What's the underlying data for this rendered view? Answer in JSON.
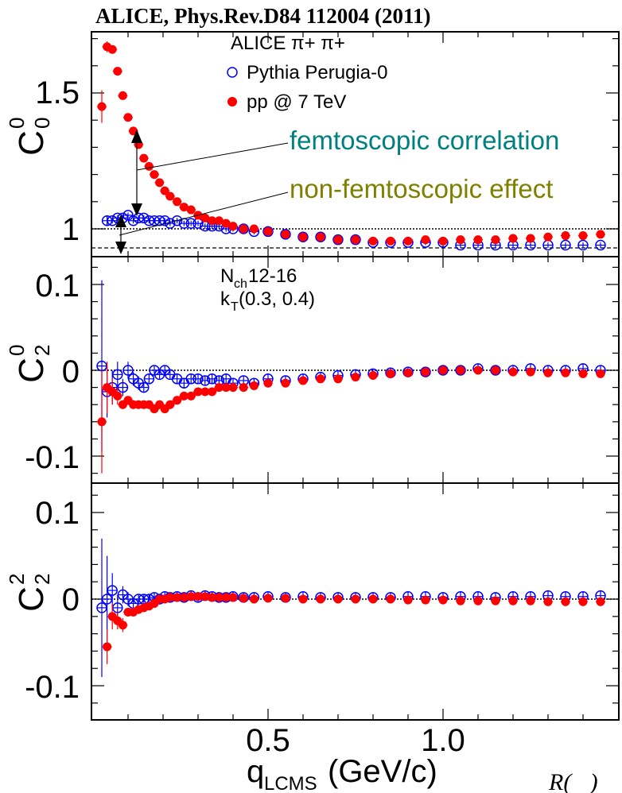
{
  "title": "ALICE, Phys.Rev.D84 112004 (2011)",
  "corner_text": "R(⃗)",
  "colors": {
    "red": "#ff0000",
    "blue": "#0000ff",
    "teal": "#008080",
    "olive": "#808000"
  },
  "legend": {
    "header": "ALICE  π+ π+",
    "entries": [
      "Pythia Perugia-0",
      "pp @ 7 TeV"
    ]
  },
  "annotations": {
    "femto": "femtoscopic correlation",
    "nonfemto": "non-femtoscopic effect",
    "nch_main": "N",
    "nch_sub": "ch",
    "nch_range": " 12-16",
    "kt_main": "k",
    "kt_sub": "T",
    "kt_range": " (0.3, 0.4)"
  },
  "x_axis": {
    "label_main": "q",
    "label_sub": "LCMS",
    "label_unit": " (GeV/c)",
    "ticks": [
      "0.5",
      "1.0"
    ]
  },
  "panels": [
    {
      "ylabel_main": "C",
      "ylabel_sup": "0",
      "ylabel_sub": "0",
      "ticks": [
        "1.5",
        "1"
      ]
    },
    {
      "ylabel_main": "C",
      "ylabel_sup": "0",
      "ylabel_sub": "2",
      "ticks": [
        "0.1",
        "0",
        "-0.1"
      ]
    },
    {
      "ylabel_main": "C",
      "ylabel_sup": "2",
      "ylabel_sub": "2",
      "ticks": [
        "0.1",
        "0",
        "-0.1"
      ]
    }
  ],
  "chart_data": [
    {
      "type": "scatter",
      "panel": "C00",
      "xlim": [
        0.02,
        1.5
      ],
      "ylim": [
        0.88,
        1.75
      ],
      "yticks": [
        1.0,
        1.5
      ],
      "series": [
        {
          "name": "pp @ 7 TeV",
          "x": [
            0.025,
            0.04,
            0.055,
            0.07,
            0.085,
            0.1,
            0.115,
            0.13,
            0.145,
            0.16,
            0.175,
            0.19,
            0.205,
            0.22,
            0.24,
            0.26,
            0.28,
            0.3,
            0.32,
            0.34,
            0.36,
            0.38,
            0.4,
            0.43,
            0.46,
            0.5,
            0.55,
            0.6,
            0.65,
            0.7,
            0.75,
            0.8,
            0.85,
            0.9,
            0.95,
            1.0,
            1.05,
            1.1,
            1.15,
            1.2,
            1.25,
            1.3,
            1.35,
            1.4,
            1.45,
            1.5
          ],
          "y": [
            1.45,
            1.67,
            1.66,
            1.58,
            1.49,
            1.41,
            1.36,
            1.31,
            1.26,
            1.23,
            1.2,
            1.17,
            1.14,
            1.12,
            1.1,
            1.08,
            1.07,
            1.05,
            1.04,
            1.03,
            1.03,
            1.02,
            1.01,
            1.0,
            1.0,
            0.99,
            0.98,
            0.97,
            0.97,
            0.96,
            0.96,
            0.955,
            0.955,
            0.955,
            0.96,
            0.955,
            0.96,
            0.96,
            0.96,
            0.965,
            0.965,
            0.97,
            0.975,
            0.975,
            0.98,
            0.98
          ],
          "yerr": [
            0.06,
            0.02,
            0.01,
            0.01,
            0.01,
            0.01,
            0.01,
            0.01,
            0.01,
            0.01,
            0.01,
            0.01,
            0.01,
            0.01,
            0.01,
            0.01,
            0.01,
            0.01,
            0.01,
            0.01,
            0.01,
            0.01,
            0.01,
            0.01,
            0.01,
            0.01,
            0.01,
            0.01,
            0.01,
            0.01,
            0.01,
            0.01,
            0.01,
            0.01,
            0.01,
            0.01,
            0.01,
            0.01,
            0.01,
            0.01,
            0.01,
            0.01,
            0.01,
            0.01,
            0.01,
            0.01
          ]
        },
        {
          "name": "Pythia Perugia-0",
          "x": [
            0.04,
            0.055,
            0.07,
            0.085,
            0.1,
            0.115,
            0.13,
            0.145,
            0.16,
            0.175,
            0.19,
            0.205,
            0.22,
            0.24,
            0.26,
            0.28,
            0.3,
            0.32,
            0.34,
            0.36,
            0.38,
            0.4,
            0.43,
            0.46,
            0.5,
            0.55,
            0.6,
            0.65,
            0.7,
            0.75,
            0.8,
            0.85,
            0.9,
            0.95,
            1.0,
            1.05,
            1.1,
            1.15,
            1.2,
            1.25,
            1.3,
            1.35,
            1.4,
            1.45,
            1.5
          ],
          "y": [
            1.03,
            1.03,
            1.04,
            1.04,
            1.05,
            1.03,
            1.04,
            1.04,
            1.03,
            1.03,
            1.03,
            1.03,
            1.02,
            1.03,
            1.02,
            1.02,
            1.02,
            1.01,
            1.01,
            1.01,
            1.0,
            1.0,
            1.0,
            0.99,
            0.99,
            0.98,
            0.97,
            0.97,
            0.96,
            0.96,
            0.95,
            0.95,
            0.95,
            0.95,
            0.95,
            0.94,
            0.94,
            0.94,
            0.94,
            0.94,
            0.94,
            0.94,
            0.94,
            0.94,
            0.94
          ],
          "yerr": [
            0.02,
            0.01,
            0.01,
            0.01,
            0.01,
            0.01,
            0.01,
            0.01,
            0.01,
            0.01,
            0.01,
            0.01,
            0.01,
            0.01,
            0.01,
            0.01,
            0.01,
            0.01,
            0.01,
            0.01,
            0.01,
            0.01,
            0.01,
            0.01,
            0.01,
            0.01,
            0.01,
            0.01,
            0.01,
            0.01,
            0.01,
            0.01,
            0.01,
            0.01,
            0.01,
            0.01,
            0.01,
            0.01,
            0.01,
            0.01,
            0.01,
            0.01,
            0.01,
            0.01,
            0.01
          ]
        }
      ]
    },
    {
      "type": "scatter",
      "panel": "C20",
      "xlim": [
        0.02,
        1.5
      ],
      "ylim": [
        -0.13,
        0.13
      ],
      "yticks": [
        -0.1,
        0.0,
        0.1
      ],
      "series": [
        {
          "name": "pp @ 7 TeV",
          "x": [
            0.025,
            0.04,
            0.055,
            0.07,
            0.085,
            0.1,
            0.115,
            0.13,
            0.145,
            0.16,
            0.175,
            0.19,
            0.205,
            0.22,
            0.24,
            0.26,
            0.28,
            0.3,
            0.32,
            0.34,
            0.36,
            0.38,
            0.4,
            0.43,
            0.46,
            0.5,
            0.55,
            0.6,
            0.65,
            0.7,
            0.75,
            0.8,
            0.85,
            0.9,
            0.95,
            1.0,
            1.05,
            1.1,
            1.15,
            1.2,
            1.25,
            1.3,
            1.35,
            1.4,
            1.45,
            1.5
          ],
          "y": [
            -0.06,
            -0.02,
            -0.025,
            -0.03,
            -0.04,
            -0.035,
            -0.04,
            -0.04,
            -0.04,
            -0.04,
            -0.045,
            -0.04,
            -0.045,
            -0.04,
            -0.035,
            -0.03,
            -0.03,
            -0.025,
            -0.025,
            -0.025,
            -0.02,
            -0.02,
            -0.02,
            -0.02,
            -0.018,
            -0.015,
            -0.015,
            -0.012,
            -0.01,
            -0.01,
            -0.008,
            -0.006,
            -0.004,
            -0.003,
            -0.002,
            0.0,
            0.0,
            0.0,
            0.0,
            -0.002,
            -0.002,
            -0.003,
            -0.003,
            -0.004,
            -0.004,
            -0.005
          ],
          "yerr": [
            0.06,
            0.03,
            0.015,
            0.01,
            0.005,
            0.005,
            0.005,
            0.005,
            0.005,
            0.005,
            0.005,
            0.005,
            0.005,
            0.005,
            0.005,
            0.005,
            0.005,
            0.005,
            0.005,
            0.005,
            0.005,
            0.005,
            0.005,
            0.005,
            0.005,
            0.005,
            0.005,
            0.005,
            0.005,
            0.005,
            0.005,
            0.005,
            0.005,
            0.005,
            0.005,
            0.005,
            0.005,
            0.005,
            0.005,
            0.005,
            0.005,
            0.005,
            0.005,
            0.005,
            0.005,
            0.005
          ]
        },
        {
          "name": "Pythia Perugia-0",
          "x": [
            0.025,
            0.04,
            0.055,
            0.07,
            0.085,
            0.1,
            0.115,
            0.13,
            0.145,
            0.16,
            0.175,
            0.19,
            0.205,
            0.22,
            0.24,
            0.26,
            0.28,
            0.3,
            0.32,
            0.34,
            0.36,
            0.38,
            0.4,
            0.43,
            0.46,
            0.5,
            0.55,
            0.6,
            0.65,
            0.7,
            0.75,
            0.8,
            0.85,
            0.9,
            0.95,
            1.0,
            1.05,
            1.1,
            1.15,
            1.2,
            1.25,
            1.3,
            1.35,
            1.4,
            1.45,
            1.5
          ],
          "y": [
            0.005,
            -0.025,
            -0.02,
            -0.005,
            -0.02,
            0.0,
            -0.01,
            -0.015,
            -0.02,
            -0.01,
            0.0,
            -0.005,
            0.0,
            -0.005,
            -0.01,
            -0.015,
            -0.01,
            -0.01,
            -0.012,
            -0.01,
            -0.012,
            -0.01,
            -0.015,
            -0.012,
            -0.015,
            -0.01,
            -0.012,
            -0.01,
            -0.008,
            -0.006,
            -0.005,
            -0.004,
            -0.003,
            -0.002,
            -0.002,
            0.0,
            0.0,
            0.002,
            0.0,
            0.0,
            0.002,
            0.0,
            0.0,
            0.002,
            0.0,
            0.0
          ],
          "yerr": [
            0.1,
            0.03,
            0.02,
            0.015,
            0.01,
            0.01,
            0.008,
            0.008,
            0.006,
            0.006,
            0.005,
            0.005,
            0.005,
            0.005,
            0.005,
            0.005,
            0.005,
            0.005,
            0.005,
            0.005,
            0.005,
            0.005,
            0.005,
            0.005,
            0.005,
            0.005,
            0.005,
            0.005,
            0.005,
            0.005,
            0.005,
            0.005,
            0.005,
            0.005,
            0.005,
            0.005,
            0.005,
            0.005,
            0.005,
            0.005,
            0.005,
            0.005,
            0.005,
            0.005,
            0.005,
            0.005
          ]
        }
      ]
    },
    {
      "type": "scatter",
      "panel": "C22",
      "xlim": [
        0.02,
        1.5
      ],
      "ylim": [
        -0.13,
        0.13
      ],
      "yticks": [
        -0.1,
        0.0,
        0.1
      ],
      "series": [
        {
          "name": "pp @ 7 TeV",
          "x": [
            0.04,
            0.055,
            0.07,
            0.085,
            0.1,
            0.115,
            0.13,
            0.145,
            0.16,
            0.175,
            0.19,
            0.205,
            0.22,
            0.24,
            0.26,
            0.28,
            0.3,
            0.32,
            0.34,
            0.36,
            0.38,
            0.4,
            0.43,
            0.46,
            0.5,
            0.55,
            0.6,
            0.65,
            0.7,
            0.75,
            0.8,
            0.85,
            0.9,
            0.95,
            1.0,
            1.05,
            1.1,
            1.15,
            1.2,
            1.25,
            1.3,
            1.35,
            1.4,
            1.45,
            1.5
          ],
          "y": [
            -0.055,
            -0.02,
            -0.025,
            -0.03,
            -0.015,
            -0.015,
            -0.012,
            -0.01,
            -0.008,
            -0.005,
            0.0,
            0.0,
            0.002,
            0.002,
            0.002,
            0.003,
            0.003,
            0.003,
            0.002,
            0.002,
            0.002,
            0.002,
            0.001,
            0.0,
            0.001,
            0.001,
            0.0,
            0.0,
            0.0,
            0.0,
            0.0,
            0.0,
            -0.001,
            -0.001,
            -0.001,
            -0.002,
            -0.002,
            -0.002,
            -0.002,
            -0.002,
            -0.003,
            -0.003,
            -0.003,
            -0.003,
            -0.003
          ],
          "yerr": [
            0.02,
            0.015,
            0.01,
            0.008,
            0.005,
            0.005,
            0.005,
            0.005,
            0.005,
            0.005,
            0.005,
            0.005,
            0.005,
            0.005,
            0.005,
            0.005,
            0.005,
            0.005,
            0.005,
            0.005,
            0.005,
            0.005,
            0.005,
            0.005,
            0.005,
            0.005,
            0.005,
            0.005,
            0.005,
            0.005,
            0.005,
            0.005,
            0.005,
            0.005,
            0.005,
            0.005,
            0.005,
            0.005,
            0.005,
            0.005,
            0.005,
            0.005,
            0.005,
            0.005,
            0.005
          ]
        },
        {
          "name": "Pythia Perugia-0",
          "x": [
            0.025,
            0.04,
            0.055,
            0.07,
            0.085,
            0.1,
            0.115,
            0.13,
            0.145,
            0.16,
            0.175,
            0.19,
            0.205,
            0.22,
            0.24,
            0.26,
            0.28,
            0.3,
            0.32,
            0.34,
            0.36,
            0.38,
            0.4,
            0.43,
            0.46,
            0.5,
            0.55,
            0.6,
            0.65,
            0.7,
            0.75,
            0.8,
            0.85,
            0.9,
            0.95,
            1.0,
            1.05,
            1.1,
            1.15,
            1.2,
            1.25,
            1.3,
            1.35,
            1.4,
            1.45,
            1.5
          ],
          "y": [
            -0.01,
            0.0,
            0.01,
            -0.01,
            0.005,
            0.0,
            -0.005,
            0.0,
            0.0,
            0.0,
            0.002,
            0.0,
            0.003,
            0.002,
            0.003,
            0.002,
            0.004,
            0.002,
            0.004,
            0.003,
            0.002,
            0.002,
            0.003,
            0.002,
            0.002,
            0.003,
            0.002,
            0.003,
            0.002,
            0.002,
            0.002,
            0.002,
            0.002,
            0.003,
            0.003,
            0.002,
            0.003,
            0.003,
            0.002,
            0.003,
            0.003,
            0.004,
            0.003,
            0.003,
            0.004,
            0.003
          ],
          "yerr": [
            0.08,
            0.05,
            0.02,
            0.015,
            0.01,
            0.008,
            0.006,
            0.006,
            0.005,
            0.005,
            0.005,
            0.005,
            0.005,
            0.005,
            0.005,
            0.005,
            0.005,
            0.005,
            0.005,
            0.005,
            0.005,
            0.005,
            0.005,
            0.005,
            0.005,
            0.005,
            0.005,
            0.005,
            0.005,
            0.005,
            0.005,
            0.005,
            0.005,
            0.005,
            0.005,
            0.005,
            0.005,
            0.005,
            0.005,
            0.005,
            0.005,
            0.005,
            0.005,
            0.005,
            0.005,
            0.005
          ]
        }
      ]
    }
  ]
}
